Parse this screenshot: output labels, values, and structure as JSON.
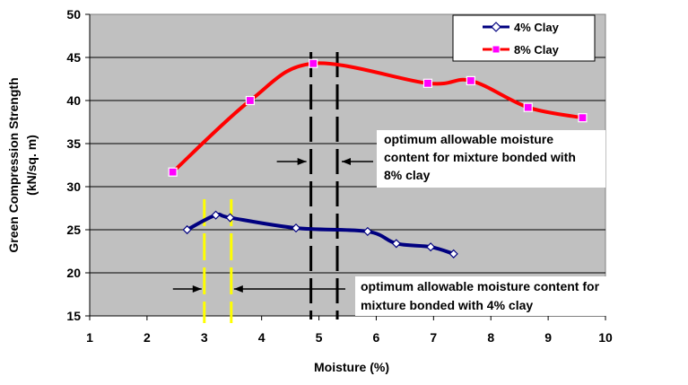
{
  "chart_data": {
    "type": "line",
    "title": "",
    "xlabel": "Moisture (%)",
    "ylabel_lines": [
      "Green Compression Strength",
      "(kN/sq. m)"
    ],
    "xlim": [
      1,
      10
    ],
    "ylim": [
      15,
      50
    ],
    "x_ticks": [
      "1",
      "2",
      "3",
      "4",
      "5",
      "6",
      "7",
      "8",
      "9",
      "10"
    ],
    "y_ticks": [
      "15",
      "20",
      "25",
      "30",
      "35",
      "40",
      "45",
      "50"
    ],
    "grid": true,
    "legend_position": "top-right",
    "plot_background": "#c0c0c0",
    "series": [
      {
        "name": "4% Clay",
        "color": "#000080",
        "marker": "diamond",
        "x": [
          2.7,
          3.2,
          3.45,
          4.6,
          5.85,
          6.35,
          6.95,
          7.35
        ],
        "y": [
          25.0,
          26.7,
          26.4,
          25.2,
          24.8,
          23.4,
          23.0,
          22.2
        ]
      },
      {
        "name": "8% Clay",
        "color": "#ff0000",
        "marker": "square",
        "x": [
          2.45,
          3.8,
          4.9,
          6.9,
          7.65,
          8.65,
          9.6
        ],
        "y": [
          31.7,
          40.0,
          44.3,
          42.0,
          42.3,
          39.2,
          38.0
        ]
      }
    ],
    "reference_lines": [
      {
        "x": 4.86,
        "color": "#000000",
        "style": "dashed"
      },
      {
        "x": 5.32,
        "color": "#000000",
        "style": "dashed"
      },
      {
        "x": 3.0,
        "color": "#ffff00",
        "style": "dashed"
      },
      {
        "x": 3.47,
        "color": "#ffff00",
        "style": "dashed"
      }
    ],
    "annotations": [
      {
        "lines": [
          "optimum allowable moisture",
          "content for mixture bonded with",
          "8% clay"
        ]
      },
      {
        "lines": [
          "optimum allowable moisture content for",
          "mixture bonded with 4% clay"
        ]
      }
    ]
  }
}
